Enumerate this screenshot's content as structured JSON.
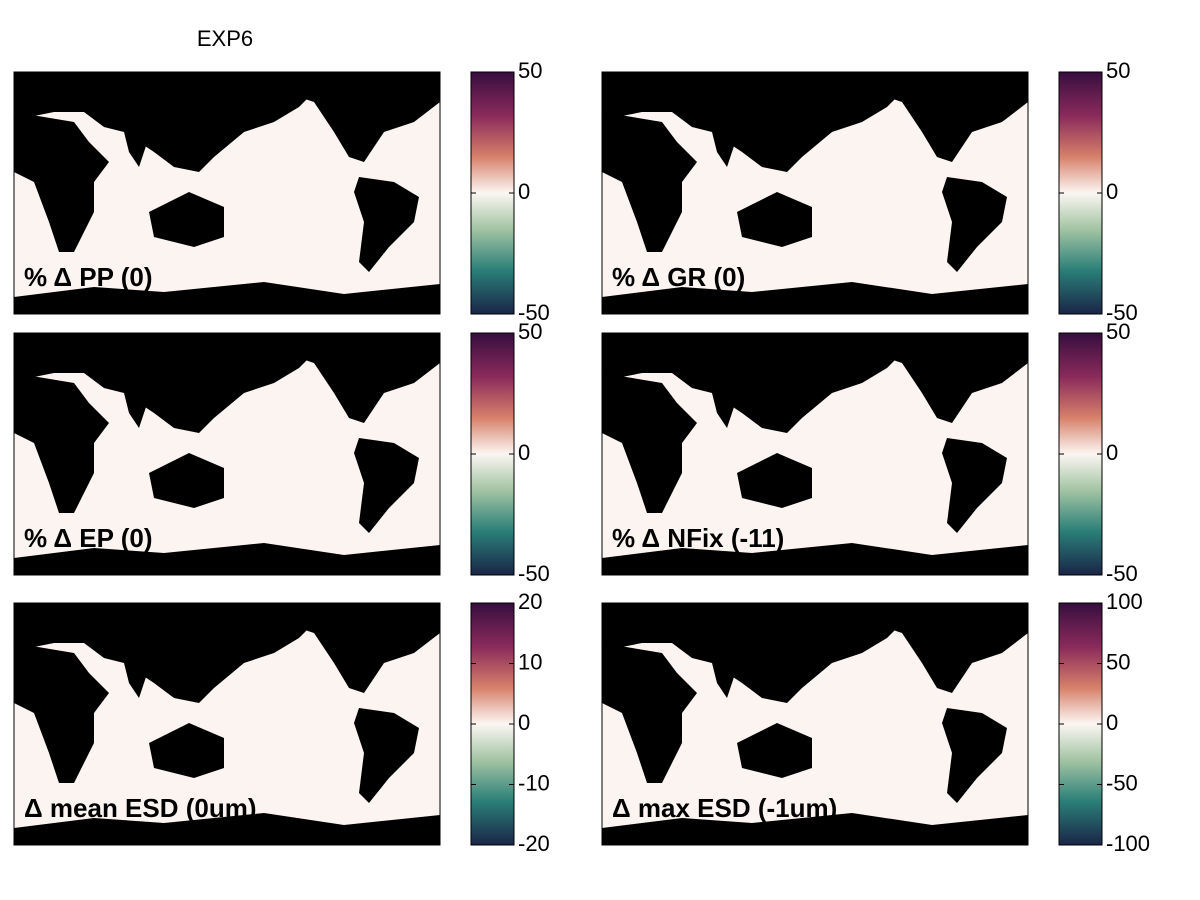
{
  "title": "EXP6",
  "chart_data": [
    {
      "type": "map",
      "title": "% Δ PP (0)",
      "clim": [
        -50,
        50
      ],
      "cticks": [
        -50,
        0,
        50
      ]
    },
    {
      "type": "map",
      "title": "% Δ GR (0)",
      "clim": [
        -50,
        50
      ],
      "cticks": [
        -50,
        0,
        50
      ]
    },
    {
      "type": "map",
      "title": "% Δ EP (0)",
      "clim": [
        -50,
        50
      ],
      "cticks": [
        -50,
        0,
        50
      ]
    },
    {
      "type": "map",
      "title": "% Δ NFix (-11)",
      "clim": [
        -50,
        50
      ],
      "cticks": [
        -50,
        0,
        50
      ]
    },
    {
      "type": "map",
      "title": "Δ mean ESD (0um)",
      "clim": [
        -20,
        20
      ],
      "cticks": [
        -20,
        -10,
        0,
        10,
        20
      ]
    },
    {
      "type": "map",
      "title": "Δ max ESD (-1um)",
      "clim": [
        -100,
        100
      ],
      "cticks": [
        -100,
        -50,
        0,
        50,
        100
      ]
    }
  ]
}
